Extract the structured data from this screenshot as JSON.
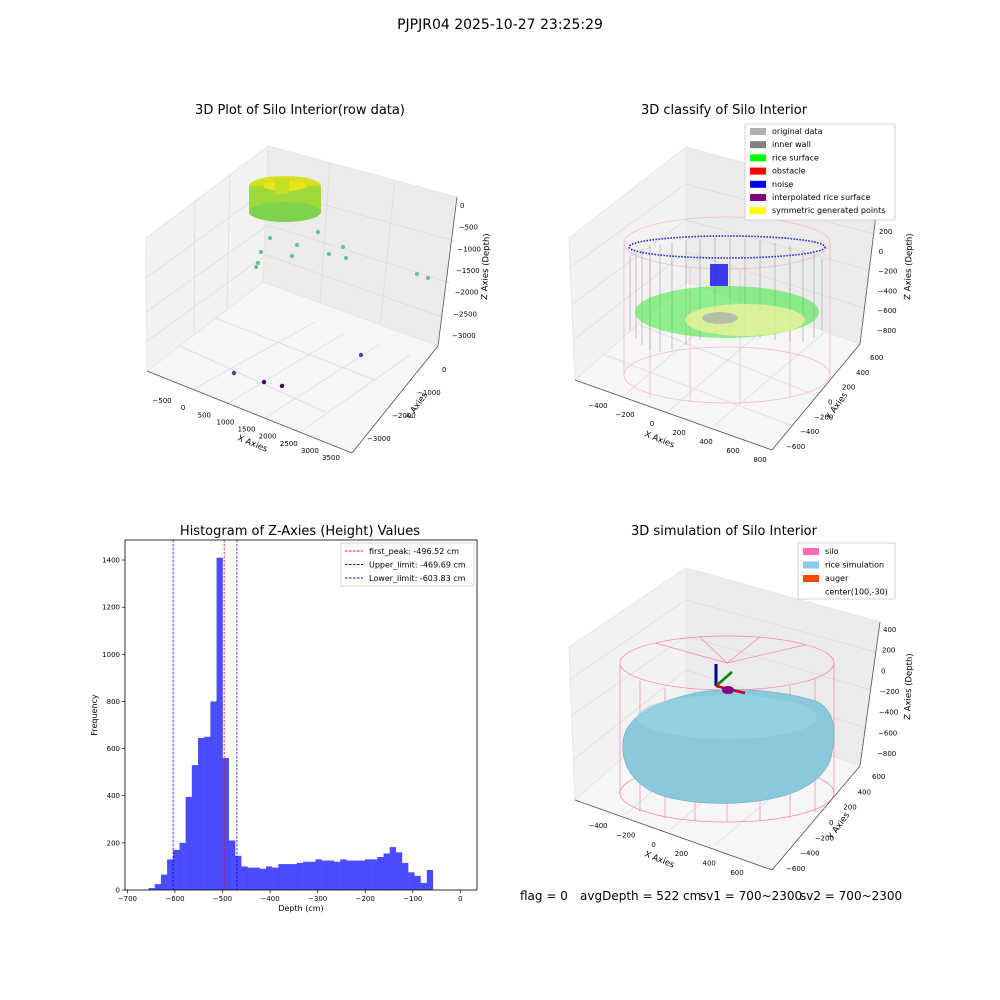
{
  "figure": {
    "suptitle": "PJPJR04 2025-10-27 23:25:29",
    "footer": {
      "flag": "flag = 0",
      "avg_depth": "avgDepth = 522 cm",
      "sv1": "sv1 = 700~2300",
      "sv2": "sv2 = 700~2300"
    }
  },
  "chart_data": [
    {
      "type": "scatter",
      "title": "3D Plot of Silo Interior(row data)",
      "xlabel": "X Axies",
      "ylabel": "Y Axies",
      "zlabel": "Z Axies (Depth)",
      "x_ticks": [
        -500,
        0,
        500,
        1000,
        1500,
        2000,
        2500,
        3000,
        3500
      ],
      "y_ticks": [
        0,
        -1000,
        -2000,
        -3000
      ],
      "z_ticks": [
        0,
        -500,
        -1000,
        -1500,
        -2000,
        -2500,
        -3000
      ],
      "x_ticks_text": [
        "−500",
        "0",
        "500",
        "1000",
        "1500",
        "2000",
        "2500",
        "3000",
        "3500"
      ],
      "y_ticks_text": [
        "0",
        "−1000",
        "−2000",
        "−3000"
      ],
      "z_ticks_text": [
        "0",
        "−500",
        "−1000",
        "−1500",
        "−2000",
        "−2500",
        "−3000"
      ],
      "colors": {
        "surface": "#c8e020",
        "mid": "#5ec28c",
        "deep": "#3b518b",
        "deepest": "#440154"
      }
    },
    {
      "type": "scatter",
      "title": "3D classify of Silo Interior",
      "xlabel": "X Axies",
      "ylabel": "Y Axies",
      "zlabel": "Z Axies (Depth)",
      "x_ticks": [
        -400,
        -200,
        0,
        200,
        400,
        600,
        800
      ],
      "y_ticks": [
        600,
        400,
        200,
        0,
        -200,
        -400,
        -600
      ],
      "z_ticks": [
        200,
        0,
        -200,
        -400,
        -600,
        -800
      ],
      "x_ticks_text": [
        "−400",
        "−200",
        "0",
        "200",
        "400",
        "600",
        "800"
      ],
      "y_ticks_text": [
        "600",
        "400",
        "200",
        "0",
        "−200",
        "−400",
        "−600"
      ],
      "z_ticks_text": [
        "200",
        "0",
        "−200",
        "−400",
        "−600",
        "−800"
      ],
      "legend": [
        {
          "label": "original data",
          "color": "#b0b0b0"
        },
        {
          "label": "inner wall",
          "color": "#808080"
        },
        {
          "label": "rice surface",
          "color": "#00ff00"
        },
        {
          "label": "obstacle",
          "color": "#ff0000"
        },
        {
          "label": "noise",
          "color": "#0000ff"
        },
        {
          "label": "interpolated rice surface",
          "color": "#800080"
        },
        {
          "label": "symmetric generated points",
          "color": "#ffff00"
        }
      ],
      "legend_position": "top-right"
    },
    {
      "type": "bar",
      "title": "Histogram of Z-Axies (Height) Values",
      "xlabel": "Depth (cm)",
      "ylabel": "Frequency",
      "xlim": [
        -705,
        35
      ],
      "ylim": [
        0,
        1485
      ],
      "x_ticks": [
        -700,
        -600,
        -500,
        -400,
        -300,
        -200,
        -100,
        0
      ],
      "x_ticks_text": [
        "−700",
        "−600",
        "−500",
        "−400",
        "−300",
        "−200",
        "−100",
        "0"
      ],
      "y_ticks": [
        0,
        200,
        400,
        600,
        800,
        1000,
        1200,
        1400
      ],
      "bin_start": -655.5,
      "bin_width": 13,
      "values": [
        8,
        25,
        65,
        130,
        170,
        200,
        395,
        530,
        645,
        650,
        800,
        1410,
        560,
        210,
        145,
        100,
        95,
        95,
        90,
        100,
        95,
        110,
        110,
        110,
        115,
        120,
        120,
        130,
        125,
        125,
        120,
        130,
        125,
        125,
        125,
        130,
        130,
        140,
        155,
        182,
        160,
        115,
        75,
        60,
        30,
        85
      ],
      "bar_color": "#0000ff",
      "lines": [
        {
          "label": "first_peak: -496.52 cm",
          "x": -496.52,
          "color": "#ff0000"
        },
        {
          "label": "Upper_limit: -469.69 cm",
          "x": -469.69,
          "color": "#0000ff"
        },
        {
          "label": "Lower_limit: -603.83 cm",
          "x": -603.83,
          "color": "#0000ff"
        }
      ],
      "legend_position": "top-right"
    },
    {
      "type": "scatter",
      "title": "3D simulation of Silo Interior",
      "xlabel": "X Axies",
      "ylabel": "Y Axies",
      "zlabel": "Z Axies (Depth)",
      "x_ticks": [
        -400,
        -200,
        0,
        200,
        400,
        600
      ],
      "y_ticks": [
        600,
        400,
        200,
        0,
        -200,
        -400,
        -600
      ],
      "z_ticks": [
        400,
        200,
        0,
        -200,
        -400,
        -600,
        -800
      ],
      "x_ticks_text": [
        "−400",
        "−200",
        "0",
        "200",
        "400",
        "600"
      ],
      "y_ticks_text": [
        "600",
        "400",
        "200",
        "0",
        "−200",
        "−400",
        "−600"
      ],
      "z_ticks_text": [
        "400",
        "200",
        "0",
        "−200",
        "−400",
        "−600",
        "−800"
      ],
      "legend": [
        {
          "label": "silo",
          "color": "#ff69b4"
        },
        {
          "label": "rice simulation",
          "color": "#87ceeb"
        },
        {
          "label": "auger",
          "color": "#ff4500"
        },
        {
          "label": "center(100,-30)",
          "color": ""
        }
      ],
      "legend_position": "top-right"
    }
  ]
}
